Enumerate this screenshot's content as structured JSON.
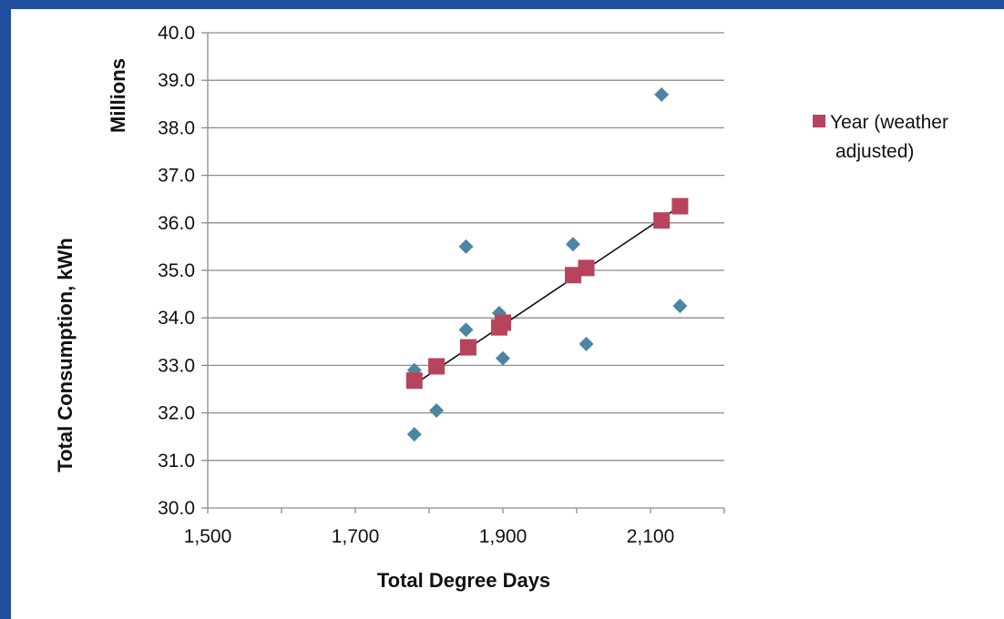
{
  "colors": {
    "frame": "#1f4f9e",
    "diamond": "#4a86a2",
    "square": "#b8435c",
    "trendline": "#111111",
    "gridline": "#8c8c8c"
  },
  "chart_data": {
    "type": "scatter",
    "xlabel": "Total Degree Days",
    "ylabel": "Total Consumption, kWh",
    "yunit_label": "Millions",
    "xlim": [
      1500,
      2200
    ],
    "ylim": [
      30.0,
      40.0
    ],
    "x_ticks": [
      1500,
      1700,
      1900,
      2100
    ],
    "x_tick_labels": [
      "1,500",
      "1,700",
      "1,900",
      "2,100"
    ],
    "y_ticks": [
      30,
      31,
      32,
      33,
      34,
      35,
      36,
      37,
      38,
      39,
      40
    ],
    "y_tick_labels": [
      "30.0",
      "31.0",
      "32.0",
      "33.0",
      "34.0",
      "35.0",
      "36.0",
      "37.0",
      "38.0",
      "39.0",
      "40.0"
    ],
    "grid": "horizontal",
    "legend": {
      "position": "right",
      "entries": [
        {
          "label_line1": "Year (weather",
          "label_line2": "adjusted)",
          "marker": "square"
        }
      ]
    },
    "series": [
      {
        "name": "",
        "marker": "diamond",
        "x": [
          1780,
          1780,
          1810,
          1850,
          1850,
          1895,
          1900,
          1995,
          2013,
          2115,
          2140
        ],
        "y": [
          31.55,
          32.9,
          32.05,
          35.5,
          33.75,
          34.1,
          33.15,
          35.55,
          33.45,
          38.7,
          34.25
        ]
      },
      {
        "name": "Year (weather adjusted)",
        "marker": "square",
        "x": [
          1780,
          1810,
          1853,
          1895,
          1900,
          1995,
          2013,
          2115,
          2140
        ],
        "y": [
          32.68,
          32.98,
          33.38,
          33.8,
          33.9,
          34.9,
          35.05,
          36.05,
          36.35
        ]
      }
    ],
    "trendline": {
      "x": [
        1780,
        2140
      ],
      "y": [
        32.6,
        36.35
      ]
    }
  }
}
